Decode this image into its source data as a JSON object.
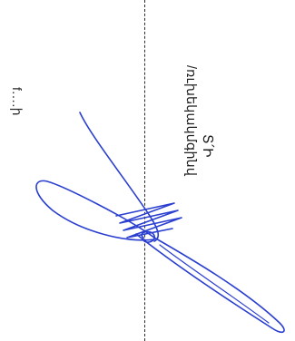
{
  "document": {
    "title_text": "Տ՛Ի",
    "role_text": "/ռւխեկակմգինվ",
    "edge_text": "f․․․․ի"
  },
  "signature": {
    "ink_color": "#2a3fd0"
  }
}
